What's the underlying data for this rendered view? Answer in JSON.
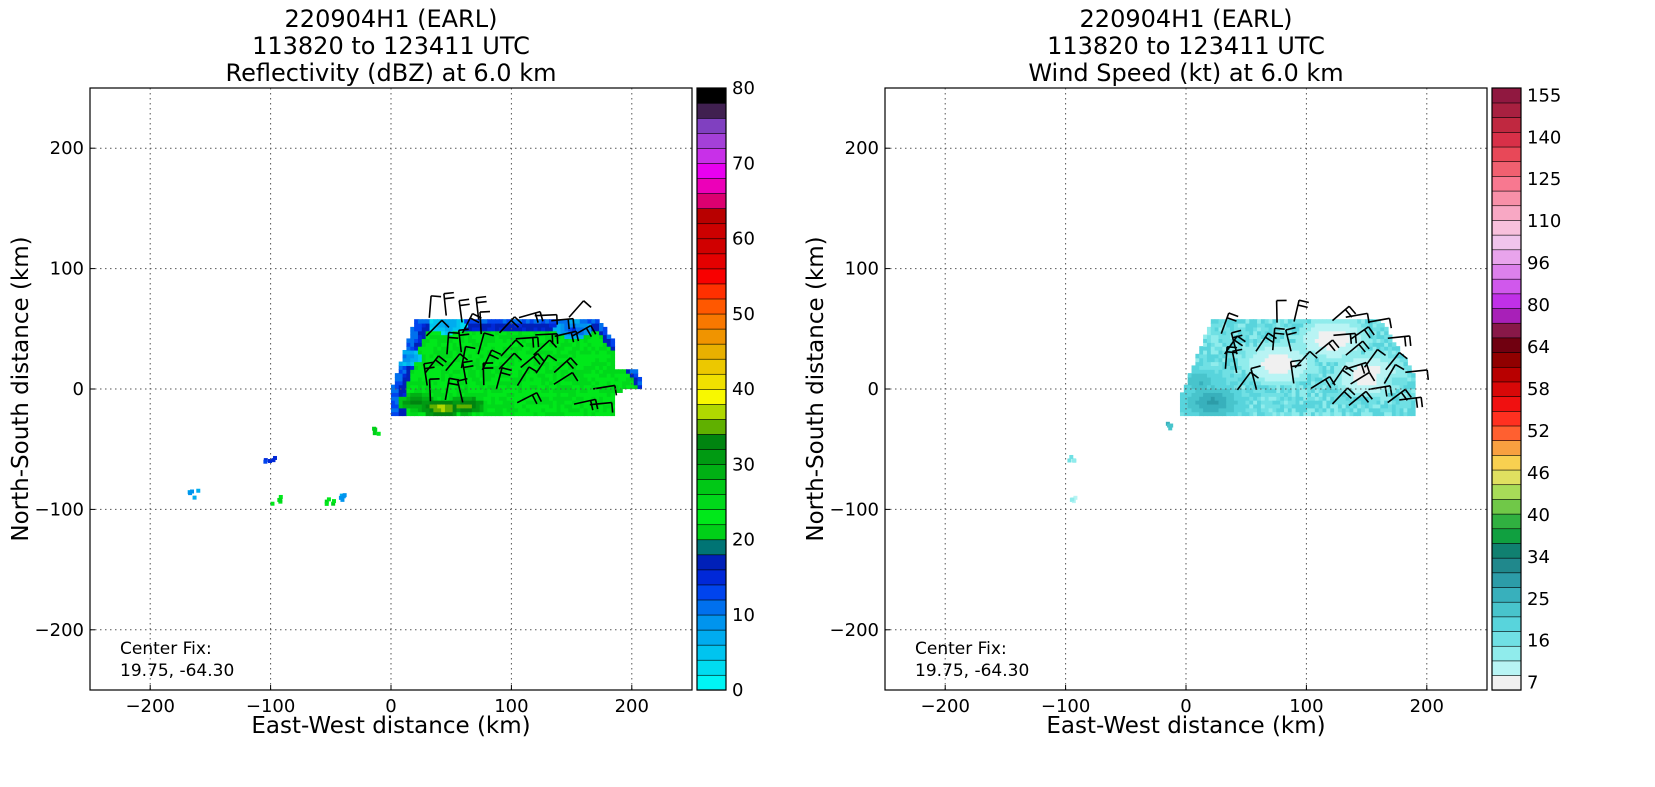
{
  "chart_data": [
    {
      "type": "heatmap",
      "title_lines": [
        "220904H1 (EARL)",
        "113820 to 123411 UTC",
        "Reflectivity (dBZ) at 6.0 km"
      ],
      "xlabel": "East-West distance (km)",
      "ylabel": "North-South distance (km)",
      "xlim": [
        -250,
        250
      ],
      "ylim": [
        -250,
        250
      ],
      "xticks": [
        -200,
        -100,
        0,
        100,
        200
      ],
      "yticks": [
        -200,
        -100,
        0,
        100,
        200
      ],
      "xtick_labels": [
        "−200",
        "−100",
        "0",
        "100",
        "200"
      ],
      "ytick_labels": [
        "−200",
        "−100",
        "0",
        "100",
        "200"
      ],
      "grid": true,
      "annotation_lines": [
        "Center Fix:",
        "19.75, -64.30"
      ],
      "colorbar": {
        "ticks": [
          "0",
          "10",
          "20",
          "30",
          "40",
          "50",
          "60",
          "70",
          "80"
        ],
        "colors": [
          "#00f5f5",
          "#00dcf0",
          "#00c4ef",
          "#00acef",
          "#0094ee",
          "#0070ee",
          "#0044ee",
          "#0028d8",
          "#0020b8",
          "#007474",
          "#00d018",
          "#00e81a",
          "#00d81a",
          "#00c816",
          "#00b014",
          "#009a12",
          "#008410",
          "#60b000",
          "#b0d800",
          "#f8f800",
          "#f0e000",
          "#ecc800",
          "#e8b000",
          "#f09400",
          "#f87800",
          "#ff5800",
          "#ff3000",
          "#f80000",
          "#e40000",
          "#d00000",
          "#cc0000",
          "#b80000",
          "#dc0070",
          "#ec00b8",
          "#e800f0",
          "#c830e8",
          "#a440d8",
          "#8040c0",
          "#402050",
          "#000000"
        ]
      },
      "echo_cells": [
        {
          "x": 40,
          "y": -17,
          "dbz": 38
        },
        {
          "x": 60,
          "y": -15,
          "dbz": 36
        },
        {
          "x": 20,
          "y": -12,
          "dbz": 34
        },
        {
          "x": 8,
          "y": 25,
          "dbz": 12
        },
        {
          "x": 45,
          "y": 52,
          "dbz": 10
        },
        {
          "x": 150,
          "y": 48,
          "dbz": 14
        }
      ],
      "isolated_echoes": [
        {
          "x": -165,
          "y": -87,
          "dbz": 8
        },
        {
          "x": -97,
          "y": -92,
          "dbz": 24
        },
        {
          "x": -52,
          "y": -93,
          "dbz": 22
        },
        {
          "x": -42,
          "y": -89,
          "dbz": 8
        },
        {
          "x": -102,
          "y": -57,
          "dbz": 14
        },
        {
          "x": -15,
          "y": -35,
          "dbz": 22
        }
      ]
    },
    {
      "type": "heatmap",
      "title_lines": [
        "220904H1 (EARL)",
        "113820 to 123411 UTC",
        "Wind Speed (kt) at 6.0 km"
      ],
      "xlabel": "East-West distance (km)",
      "ylabel": "North-South distance (km)",
      "xlim": [
        -250,
        250
      ],
      "ylim": [
        -250,
        250
      ],
      "xticks": [
        -200,
        -100,
        0,
        100,
        200
      ],
      "yticks": [
        -200,
        -100,
        0,
        100,
        200
      ],
      "xtick_labels": [
        "−200",
        "−100",
        "0",
        "100",
        "200"
      ],
      "ytick_labels": [
        "−200",
        "−100",
        "0",
        "100",
        "200"
      ],
      "grid": true,
      "annotation_lines": [
        "Center Fix:",
        "19.75, -64.30"
      ],
      "colorbar": {
        "ticks": [
          "7",
          "16",
          "25",
          "34",
          "40",
          "46",
          "52",
          "58",
          "64",
          "80",
          "96",
          "110",
          "125",
          "140",
          "155"
        ],
        "colors": [
          "#f0f0f0",
          "#b8f4f4",
          "#90ecec",
          "#70e0e4",
          "#58d4dc",
          "#48c4cc",
          "#38b0bc",
          "#2c9ca8",
          "#20888c",
          "#108070",
          "#10a040",
          "#30b040",
          "#70c848",
          "#a8dc58",
          "#e0e060",
          "#f8d050",
          "#f8a040",
          "#ff6030",
          "#ff3020",
          "#f01010",
          "#d80808",
          "#b80000",
          "#900000",
          "#700010",
          "#881848",
          "#a820b8",
          "#c030e8",
          "#d058ec",
          "#dc80ec",
          "#e8a4ec",
          "#f0c4ec",
          "#f8c0dc",
          "#f8a8c4",
          "#f890a8",
          "#f87890",
          "#f06070",
          "#e84858",
          "#d83048",
          "#c02840",
          "#a82040",
          "#901840"
        ]
      },
      "wind_cells": [
        {
          "x": 20,
          "y": -12,
          "kt": 30
        },
        {
          "x": 10,
          "y": 5,
          "kt": 26
        },
        {
          "x": 75,
          "y": 20,
          "kt": 6
        },
        {
          "x": 150,
          "y": 10,
          "kt": 6
        },
        {
          "x": 120,
          "y": 40,
          "kt": 6
        },
        {
          "x": 175,
          "y": 5,
          "kt": 18
        }
      ],
      "isolated_echoes": [
        {
          "x": -97,
          "y": -57,
          "kt": 16
        },
        {
          "x": -95,
          "y": -90,
          "kt": 12
        },
        {
          "x": -15,
          "y": -30,
          "kt": 25
        }
      ]
    }
  ]
}
